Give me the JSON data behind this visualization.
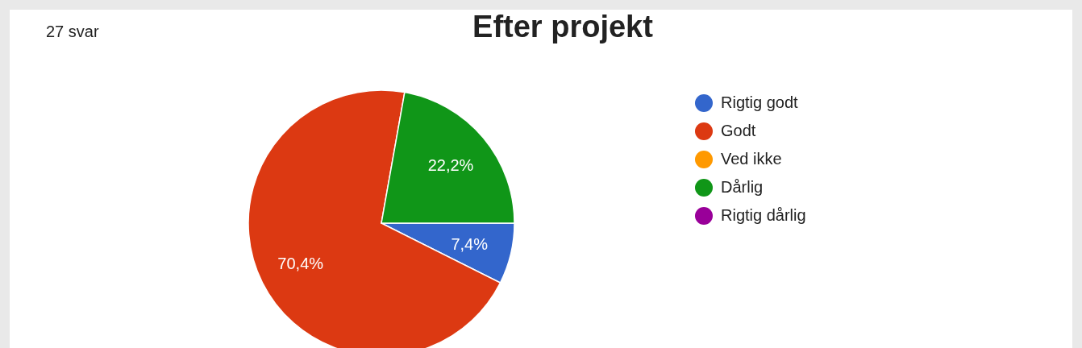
{
  "chart_data": {
    "type": "pie",
    "title": "Efter projekt",
    "annotations": [
      "27 svar"
    ],
    "categories": [
      "Rigtig godt",
      "Godt",
      "Ved ikke",
      "Dårlig",
      "Rigtig dårlig"
    ],
    "values": [
      7.4,
      70.4,
      0,
      22.2,
      0
    ],
    "colors": [
      "#3366cc",
      "#dc3912",
      "#ff9900",
      "#109618",
      "#990099"
    ],
    "value_labels": [
      "7,4%",
      "70,4%",
      null,
      "22,2%",
      null
    ],
    "legend": "right"
  }
}
